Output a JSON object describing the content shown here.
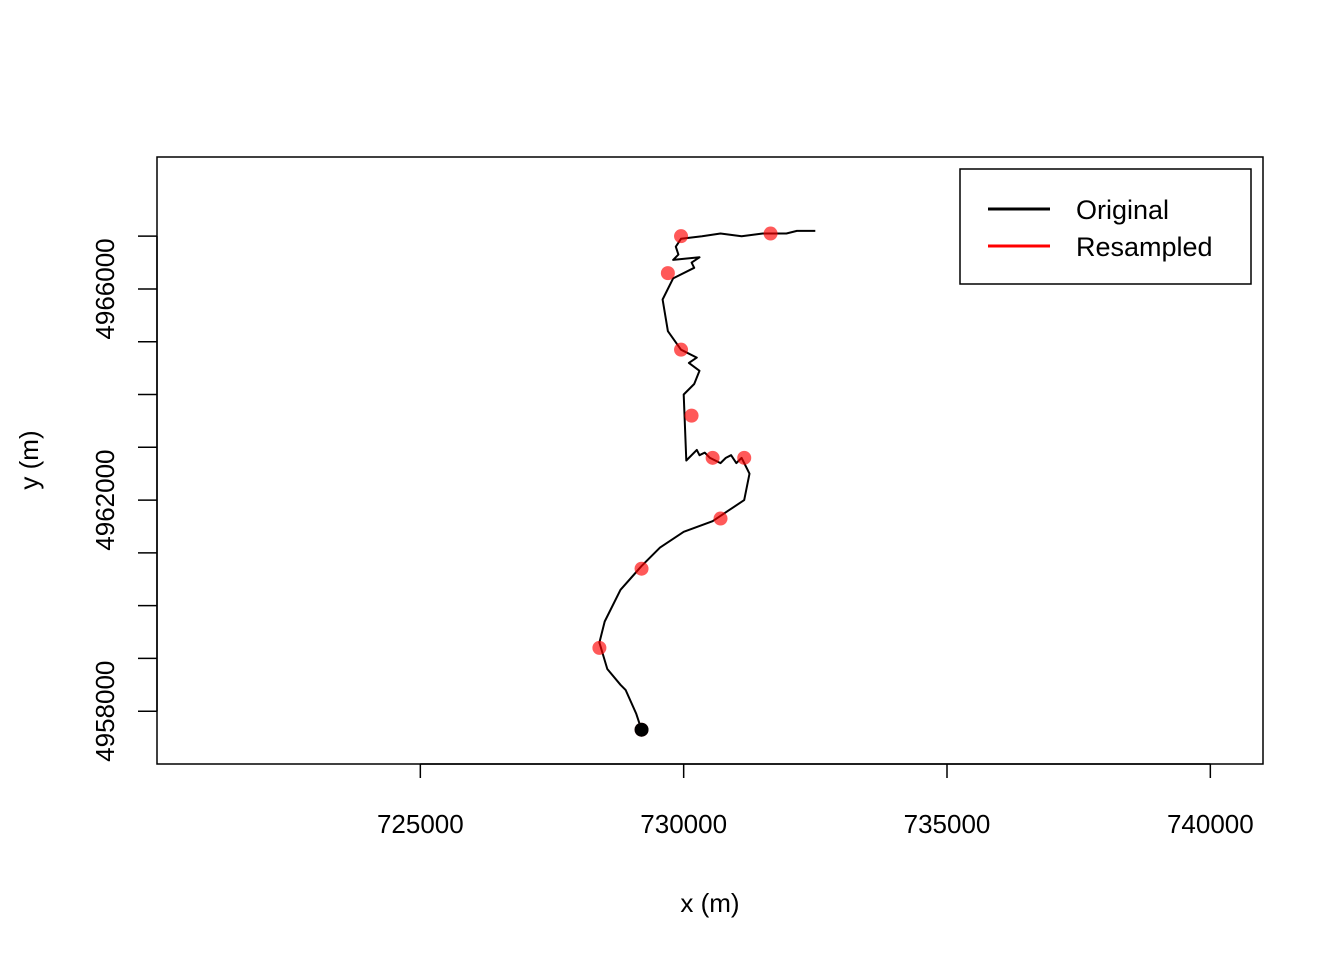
{
  "chart_data": {
    "type": "line",
    "title": "",
    "xlabel": "x (m)",
    "ylabel": "y (m)",
    "xlim": [
      720000,
      741000
    ],
    "ylim": [
      4957000,
      4968500
    ],
    "x_ticks": [
      725000,
      730000,
      735000,
      740000
    ],
    "x_tick_labels": [
      "725000",
      "730000",
      "735000",
      "740000"
    ],
    "y_ticks": [
      4958000,
      4959000,
      4960000,
      4961000,
      4962000,
      4963000,
      4964000,
      4965000,
      4966000,
      4967000
    ],
    "y_tick_labels": [
      "4958000",
      "",
      "",
      "",
      "4962000",
      "",
      "",
      "",
      "4966000",
      ""
    ],
    "grid": false,
    "legend_position": "top-right",
    "legend": [
      {
        "label": "Original",
        "color": "#000000"
      },
      {
        "label": "Resampled",
        "color": "#ff0000"
      }
    ],
    "series": [
      {
        "name": "Original",
        "color": "#000000",
        "x": [
          729200,
          729100,
          728900,
          728800,
          728550,
          728400,
          728500,
          728800,
          729200,
          729550,
          730000,
          730550,
          730850,
          731150,
          731250,
          731200,
          731100,
          731000,
          730900,
          730800,
          730700,
          730500,
          730400,
          730300,
          730250,
          730050,
          730000,
          730200,
          730300,
          730100,
          730250,
          729950,
          729700,
          729600,
          729800,
          730200,
          730150,
          730300,
          729800,
          729900,
          729850,
          729950,
          730350,
          730700,
          731100,
          731500,
          731950,
          732150,
          732500
        ],
        "y": [
          4957650,
          4957950,
          4958400,
          4958500,
          4958800,
          4959300,
          4959700,
          4960300,
          4960750,
          4961100,
          4961400,
          4961600,
          4961800,
          4962000,
          4962500,
          4962600,
          4962800,
          4962700,
          4962850,
          4962800,
          4962700,
          4962800,
          4962900,
          4962850,
          4962950,
          4962750,
          4964000,
          4964200,
          4964450,
          4964600,
          4964700,
          4964850,
          4965200,
          4965800,
          4966200,
          4966400,
          4966500,
          4966600,
          4966550,
          4966650,
          4966800,
          4966950,
          4967000,
          4967050,
          4967000,
          4967050,
          4967050,
          4967100,
          4967100
        ]
      },
      {
        "name": "Resampled",
        "color": "#ff0000",
        "x": [
          729200,
          728400,
          729200,
          730700,
          731150,
          730550,
          730150,
          729950,
          729700,
          729950,
          731650
        ],
        "y": [
          4957650,
          4959200,
          4960700,
          4961650,
          4962800,
          4962800,
          4963600,
          4964850,
          4966300,
          4967000,
          4967050
        ]
      }
    ]
  }
}
